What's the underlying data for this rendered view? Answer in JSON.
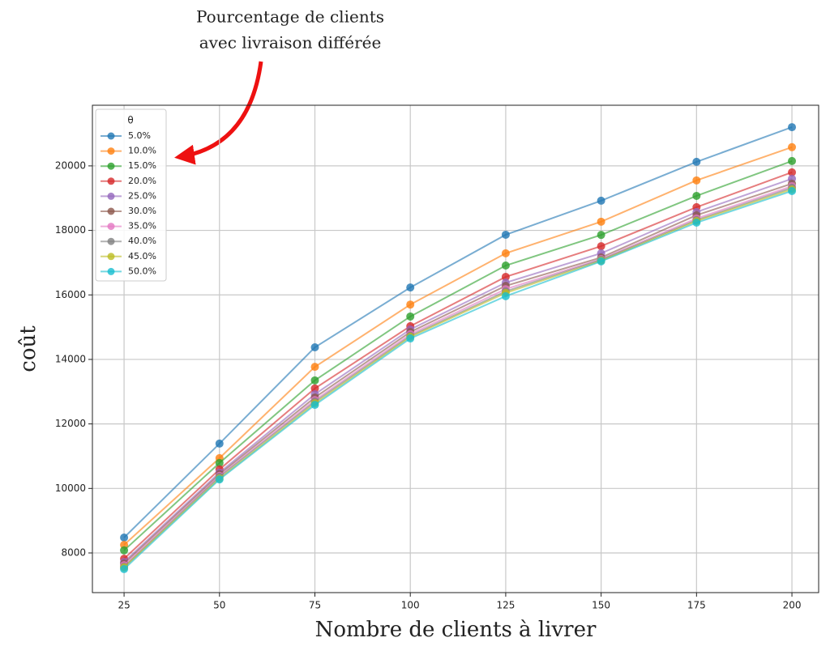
{
  "chart_data": {
    "type": "line",
    "annotation": [
      "Pourcentage de clients",
      "avec livraison différée"
    ],
    "xlabel": "Nombre de clients à livrer",
    "ylabel": "coût",
    "legend_title": "θ",
    "legend_position": "upper left",
    "grid": true,
    "x": [
      25,
      50,
      75,
      100,
      125,
      150,
      175,
      200
    ],
    "xlim": [
      16.7,
      207
    ],
    "xticks": [
      25,
      50,
      75,
      100,
      125,
      150,
      175,
      200
    ],
    "ylim": [
      6770,
      21880
    ],
    "yticks": [
      8000,
      10000,
      12000,
      14000,
      16000,
      18000,
      20000
    ],
    "series": [
      {
        "name": "5.0%",
        "color": "#1f77b4",
        "values": [
          8477,
          11390,
          14375,
          16230,
          17865,
          18920,
          20125,
          21200
        ]
      },
      {
        "name": "10.0%",
        "color": "#ff7f0e",
        "values": [
          8250,
          10940,
          13770,
          15700,
          17290,
          18270,
          19550,
          20580
        ]
      },
      {
        "name": "15.0%",
        "color": "#2ca02c",
        "values": [
          8080,
          10790,
          13350,
          15330,
          16910,
          17860,
          19070,
          20150
        ]
      },
      {
        "name": "20.0%",
        "color": "#d62728",
        "values": [
          7820,
          10590,
          13100,
          15030,
          16560,
          17510,
          18720,
          19800
        ]
      },
      {
        "name": "25.0%",
        "color": "#9467bd",
        "values": [
          7720,
          10490,
          12920,
          14930,
          16380,
          17290,
          18570,
          19600
        ]
      },
      {
        "name": "30.0%",
        "color": "#8c564b",
        "values": [
          7670,
          10440,
          12820,
          14850,
          16280,
          17160,
          18470,
          19450
        ]
      },
      {
        "name": "35.0%",
        "color": "#e377c2",
        "values": [
          7620,
          10390,
          12740,
          14780,
          16180,
          17110,
          18370,
          19370
        ]
      },
      {
        "name": "40.0%",
        "color": "#7f7f7f",
        "values": [
          7570,
          10360,
          12690,
          14730,
          16110,
          17090,
          18320,
          19320
        ]
      },
      {
        "name": "45.0%",
        "color": "#bcbd22",
        "values": [
          7550,
          10310,
          12640,
          14700,
          16060,
          17060,
          18290,
          19270
        ]
      },
      {
        "name": "50.0%",
        "color": "#17becf",
        "values": [
          7500,
          10280,
          12590,
          14650,
          15960,
          17040,
          18240,
          19220
        ]
      }
    ]
  }
}
